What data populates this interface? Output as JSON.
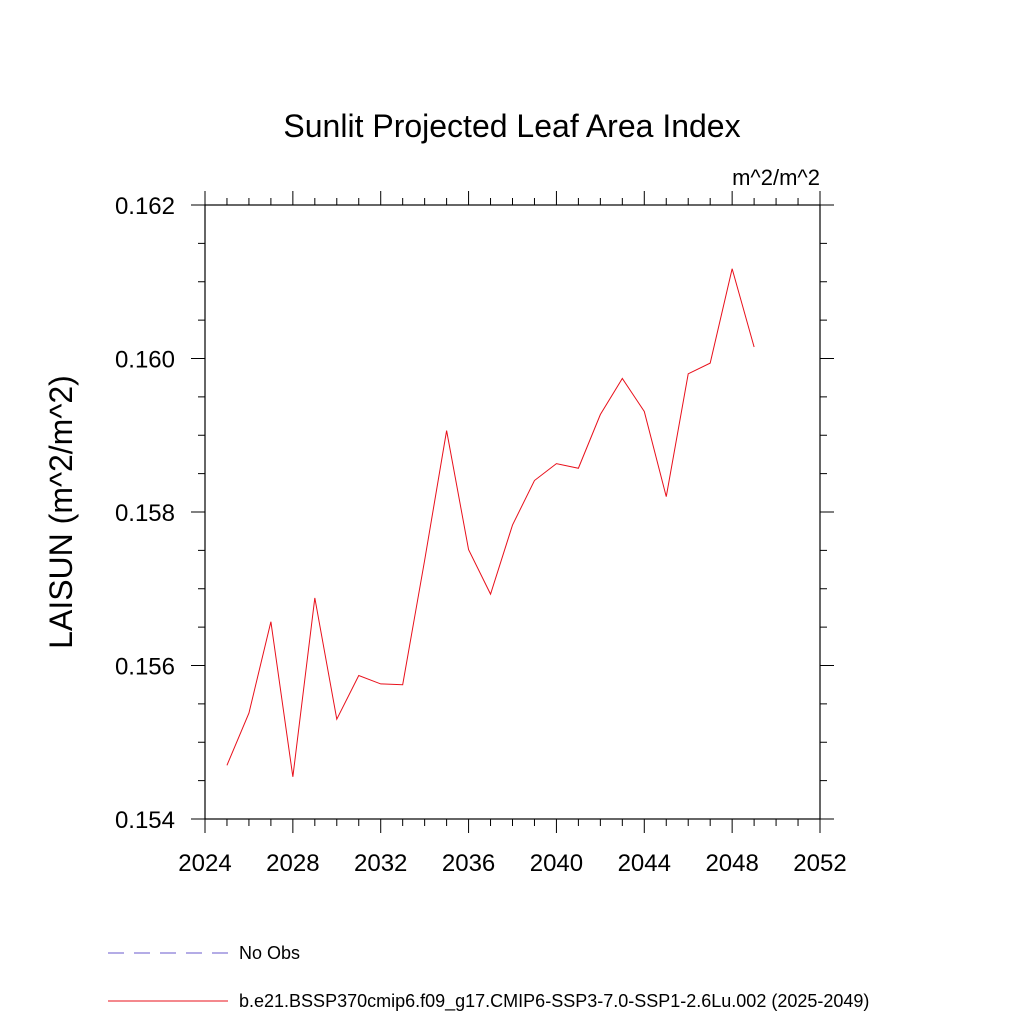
{
  "chart_data": {
    "type": "line",
    "title": "Sunlit Projected Leaf Area Index",
    "units_label": "m^2/m^2",
    "ylabel": "LAISUN  (m^2/m^2)",
    "xlabel": "",
    "xlim": [
      2024,
      2052
    ],
    "ylim": [
      0.154,
      0.162
    ],
    "x_ticks": [
      2024,
      2028,
      2032,
      2036,
      2040,
      2044,
      2048,
      2052
    ],
    "x_tick_labels": [
      "2024",
      "2028",
      "2032",
      "2036",
      "2040",
      "2044",
      "2048",
      "2052"
    ],
    "y_ticks": [
      0.154,
      0.156,
      0.158,
      0.16,
      0.162
    ],
    "y_tick_labels": [
      "0.154",
      "0.156",
      "0.158",
      "0.160",
      "0.162"
    ],
    "grid": false,
    "series": [
      {
        "name": "b.e21.BSSP370cmip6.f09_g17.CMIP6-SSP3-7.0-SSP1-2.6Lu.002 (2025-2049)",
        "color": "#e8101b",
        "style": "solid",
        "x": [
          2025,
          2026,
          2027,
          2028,
          2029,
          2030,
          2031,
          2032,
          2033,
          2034,
          2035,
          2036,
          2037,
          2038,
          2039,
          2040,
          2041,
          2042,
          2043,
          2044,
          2045,
          2046,
          2047,
          2048,
          2049
        ],
        "values": [
          0.1547,
          0.15538,
          0.15657,
          0.15455,
          0.15688,
          0.1553,
          0.15587,
          0.15576,
          0.15575,
          0.15737,
          0.15906,
          0.15751,
          0.15693,
          0.15783,
          0.15841,
          0.15863,
          0.15857,
          0.15927,
          0.15974,
          0.15931,
          0.1582,
          0.1598,
          0.15994,
          0.16117,
          0.16015
        ]
      }
    ],
    "legend": [
      {
        "label": "No Obs",
        "color": "#6a5acd",
        "style": "dashed"
      },
      {
        "label": "b.e21.BSSP370cmip6.f09_g17.CMIP6-SSP3-7.0-SSP1-2.6Lu.002 (2025-2049)",
        "color": "#e8101b",
        "style": "solid"
      }
    ]
  }
}
